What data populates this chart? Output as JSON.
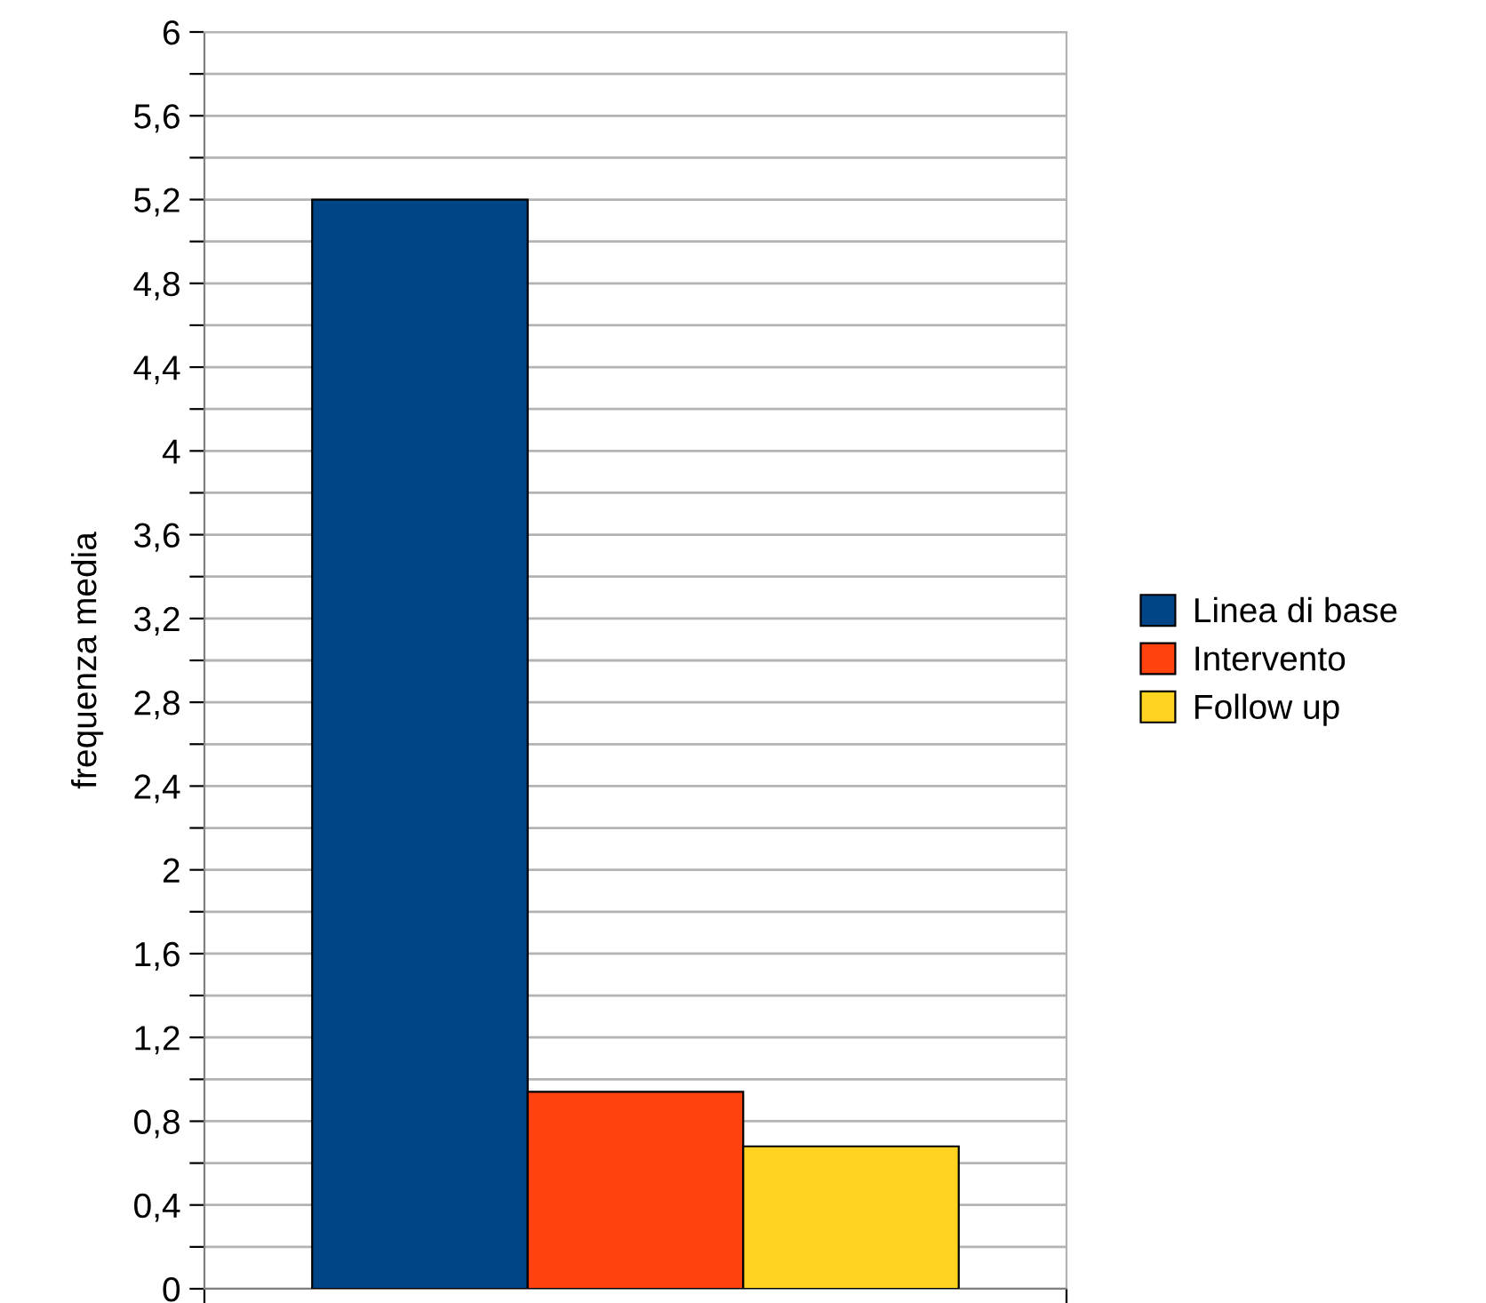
{
  "chart_data": {
    "type": "bar",
    "ylabel": "frequenza media",
    "categories": [
      null
    ],
    "series": [
      {
        "name": "Linea di base",
        "color": "#004586",
        "values": [
          5.2
        ]
      },
      {
        "name": "Intervento",
        "color": "#ff420e",
        "values": [
          0.94
        ]
      },
      {
        "name": "Follow up",
        "color": "#ffd320",
        "values": [
          0.68
        ]
      }
    ],
    "ylim": [
      0,
      6
    ],
    "yticks": [
      0,
      {
        "value": 0.2,
        "label": null
      },
      {
        "value": 0.4,
        "label": "0,4"
      },
      {
        "value": 0.6,
        "label": null
      },
      {
        "value": 0.8,
        "label": "0,8"
      },
      {
        "value": 1.0,
        "label": null
      },
      {
        "value": 1.2,
        "label": "1,2"
      },
      {
        "value": 1.4,
        "label": null
      },
      {
        "value": 1.6,
        "label": "1,6"
      },
      {
        "value": 1.8,
        "label": null
      },
      2,
      {
        "value": 2.2,
        "label": null
      },
      {
        "value": 2.4,
        "label": "2,4"
      },
      {
        "value": 2.6,
        "label": null
      },
      {
        "value": 2.8,
        "label": "2,8"
      },
      {
        "value": 3.0,
        "label": null
      },
      {
        "value": 3.2,
        "label": "3,2"
      },
      {
        "value": 3.4,
        "label": null
      },
      {
        "value": 3.6,
        "label": "3,6"
      },
      {
        "value": 3.8,
        "label": null
      },
      4,
      {
        "value": 4.2,
        "label": null
      },
      {
        "value": 4.4,
        "label": "4,4"
      },
      {
        "value": 4.6,
        "label": null
      },
      {
        "value": 4.8,
        "label": "4,8"
      },
      {
        "value": 5.0,
        "label": null
      },
      {
        "value": 5.2,
        "label": "5,2"
      },
      {
        "value": 5.4,
        "label": null
      },
      {
        "value": 5.6,
        "label": "5,6"
      },
      {
        "value": 5.8,
        "label": null
      },
      6
    ],
    "grid": "y",
    "legend": "right"
  }
}
